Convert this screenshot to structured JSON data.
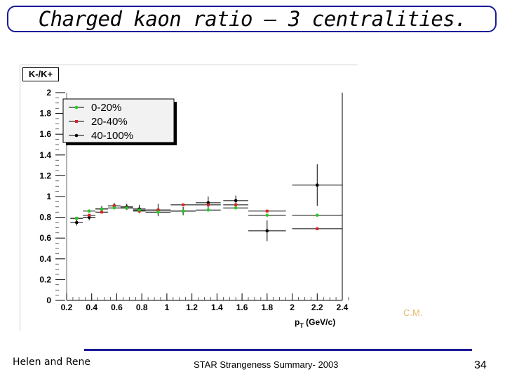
{
  "slide": {
    "title": "Charged kaon ratio – 3 centralities.",
    "footer_left": "Helen and Rene",
    "footer_center": "STAR Strangeness Summary- 2003",
    "page_number": "34",
    "watermark": "C.M."
  },
  "colors": {
    "title_frame": "#1a1a99",
    "series_0_20": "#22cc22",
    "series_20_40": "#dd2222",
    "series_40_100": "#000000",
    "watermark": "#e9b96e"
  },
  "chart_data": {
    "type": "scatter",
    "title": "K-/K+",
    "xlabel": "pT (GeV/c)",
    "ylabel": "K-/K+",
    "xlim": [
      0.2,
      2.45
    ],
    "ylim": [
      0,
      2
    ],
    "xticks": [
      "0.2",
      "0.4",
      "0.6",
      "0.8",
      "1",
      "1.2",
      "1.4",
      "1.6",
      "1.8",
      "2",
      "2.2",
      "2.4"
    ],
    "yticks": [
      "0",
      "0.2",
      "0.4",
      "0.6",
      "0.8",
      "1",
      "1.2",
      "1.4",
      "1.6",
      "1.8",
      "2"
    ],
    "legend_position": "top-left",
    "series": [
      {
        "name": "0-20%",
        "color": "#22cc22",
        "points": [
          {
            "x": 0.28,
            "y": 0.79,
            "xerr": 0.05
          },
          {
            "x": 0.38,
            "y": 0.86,
            "xerr": 0.05
          },
          {
            "x": 0.48,
            "y": 0.88,
            "xerr": 0.05
          },
          {
            "x": 0.58,
            "y": 0.89,
            "xerr": 0.05
          },
          {
            "x": 0.68,
            "y": 0.89,
            "xerr": 0.05
          },
          {
            "x": 0.78,
            "y": 0.87,
            "xerr": 0.05
          },
          {
            "x": 0.93,
            "y": 0.85,
            "xerr": 0.1
          },
          {
            "x": 1.13,
            "y": 0.86,
            "xerr": 0.1
          },
          {
            "x": 1.33,
            "y": 0.87,
            "xerr": 0.1
          },
          {
            "x": 1.55,
            "y": 0.89,
            "xerr": 0.1
          },
          {
            "x": 1.8,
            "y": 0.82,
            "xerr": 0.15
          },
          {
            "x": 2.2,
            "y": 0.82,
            "xerr": 0.2
          }
        ]
      },
      {
        "name": "20-40%",
        "color": "#dd2222",
        "points": [
          {
            "x": 0.28,
            "y": 0.79,
            "xerr": 0.05
          },
          {
            "x": 0.38,
            "y": 0.82,
            "xerr": 0.05
          },
          {
            "x": 0.48,
            "y": 0.85,
            "xerr": 0.05
          },
          {
            "x": 0.58,
            "y": 0.91,
            "xerr": 0.05
          },
          {
            "x": 0.68,
            "y": 0.89,
            "xerr": 0.05
          },
          {
            "x": 0.78,
            "y": 0.86,
            "xerr": 0.05
          },
          {
            "x": 0.93,
            "y": 0.87,
            "xerr": 0.1
          },
          {
            "x": 1.13,
            "y": 0.92,
            "xerr": 0.1
          },
          {
            "x": 1.33,
            "y": 0.92,
            "xerr": 0.1
          },
          {
            "x": 1.55,
            "y": 0.92,
            "xerr": 0.1
          },
          {
            "x": 1.8,
            "y": 0.86,
            "xerr": 0.15
          },
          {
            "x": 2.2,
            "y": 0.69,
            "xerr": 0.2
          }
        ]
      },
      {
        "name": "40-100%",
        "color": "#000000",
        "points": [
          {
            "x": 0.28,
            "y": 0.75,
            "xerr": 0.05,
            "yerr": 0.03
          },
          {
            "x": 0.38,
            "y": 0.8,
            "xerr": 0.05,
            "yerr": 0.03
          },
          {
            "x": 0.48,
            "y": 0.88,
            "xerr": 0.05,
            "yerr": 0.03
          },
          {
            "x": 0.58,
            "y": 0.91,
            "xerr": 0.05,
            "yerr": 0.03
          },
          {
            "x": 0.68,
            "y": 0.9,
            "xerr": 0.05,
            "yerr": 0.03
          },
          {
            "x": 0.78,
            "y": 0.88,
            "xerr": 0.05,
            "yerr": 0.04
          },
          {
            "x": 0.93,
            "y": 0.87,
            "xerr": 0.1,
            "yerr": 0.06
          },
          {
            "x": 1.13,
            "y": 0.86,
            "xerr": 0.1,
            "yerr": 0.04
          },
          {
            "x": 1.33,
            "y": 0.94,
            "xerr": 0.1,
            "yerr": 0.06
          },
          {
            "x": 1.55,
            "y": 0.96,
            "xerr": 0.1,
            "yerr": 0.05
          },
          {
            "x": 1.8,
            "y": 0.67,
            "xerr": 0.15,
            "yerr": 0.1
          },
          {
            "x": 2.2,
            "y": 1.11,
            "xerr": 0.2,
            "yerr": 0.2
          }
        ]
      }
    ]
  }
}
